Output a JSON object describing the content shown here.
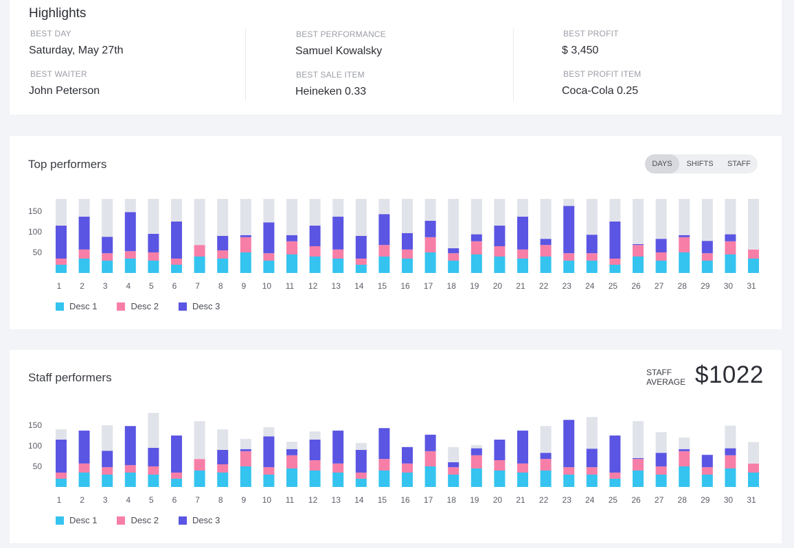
{
  "colors": {
    "desc1": "#35c3ef",
    "desc2": "#f77fa7",
    "desc3": "#5a55e2",
    "remainder": "#e1e3ea"
  },
  "highlights": {
    "title": "Highlights",
    "best_day_label": "BEST DAY",
    "best_day": "Saturday, May 27th",
    "best_waiter_label": "BEST WAITER",
    "best_waiter": "John Peterson",
    "best_performance_label": "BEST PERFORMANCE",
    "best_performance": "Samuel Kowalsky",
    "best_sale_item_label": "BEST SALE ITEM",
    "best_sale_item": "Heineken 0.33",
    "best_profit_label": "BEST PROFIT",
    "best_profit": "$ 3,450",
    "best_profit_item_label": "BEST PROFIT ITEM",
    "best_profit_item": "Coca-Cola 0.25"
  },
  "top_performers": {
    "title": "Top performers",
    "toggle": [
      "DAYS",
      "SHIFTS",
      "STAFF"
    ],
    "active": "DAYS"
  },
  "staff_performers": {
    "title": "Staff performers",
    "avg_label_1": "STAFF",
    "avg_label_2": "AVERAGE",
    "avg_value": "$1022"
  },
  "chart_data": [
    {
      "type": "bar",
      "stacked": true,
      "yticks": [
        50,
        100,
        150
      ],
      "ylim": [
        0,
        180
      ],
      "categories": [
        "1",
        "2",
        "3",
        "4",
        "5",
        "6",
        "7",
        "8",
        "9",
        "10",
        "11",
        "12",
        "13",
        "14",
        "15",
        "16",
        "17",
        "18",
        "19",
        "20",
        "21",
        "22",
        "23",
        "24",
        "25",
        "26",
        "27",
        "28",
        "29",
        "30",
        "31"
      ],
      "series": [
        {
          "name": "Desc 1",
          "values": [
            20,
            35,
            30,
            35,
            30,
            20,
            40,
            35,
            50,
            30,
            45,
            40,
            35,
            20,
            40,
            35,
            50,
            30,
            45,
            40,
            35,
            40,
            30,
            30,
            20,
            40,
            30,
            50,
            30,
            45,
            35
          ]
        },
        {
          "name": "Desc 2",
          "values": [
            15,
            22,
            18,
            18,
            20,
            15,
            28,
            20,
            37,
            18,
            32,
            25,
            22,
            15,
            28,
            22,
            37,
            18,
            32,
            25,
            22,
            28,
            18,
            18,
            15,
            28,
            20,
            37,
            18,
            32,
            22
          ]
        },
        {
          "name": "Desc 3",
          "values": [
            80,
            80,
            40,
            95,
            45,
            90,
            0,
            35,
            5,
            75,
            15,
            50,
            80,
            55,
            75,
            40,
            40,
            12,
            17,
            50,
            80,
            15,
            115,
            45,
            90,
            2,
            33,
            5,
            30,
            17,
            0
          ]
        },
        {
          "name": "",
          "values": [
            65,
            43,
            92,
            32,
            85,
            55,
            112,
            90,
            88,
            57,
            88,
            65,
            43,
            90,
            37,
            83,
            53,
            120,
            86,
            65,
            43,
            97,
            17,
            87,
            55,
            110,
            97,
            88,
            102,
            86,
            123
          ]
        }
      ],
      "legend": [
        "Desc 1",
        "Desc 2",
        "Desc 3"
      ]
    },
    {
      "type": "bar",
      "stacked": true,
      "yticks": [
        50,
        100,
        150
      ],
      "ylim": [
        0,
        180
      ],
      "categories": [
        "1",
        "2",
        "3",
        "4",
        "5",
        "6",
        "7",
        "8",
        "9",
        "10",
        "11",
        "12",
        "13",
        "14",
        "15",
        "16",
        "17",
        "18",
        "19",
        "20",
        "21",
        "22",
        "23",
        "24",
        "25",
        "26",
        "27",
        "28",
        "29",
        "30",
        "31"
      ],
      "series": [
        {
          "name": "Desc 1",
          "values": [
            20,
            35,
            30,
            35,
            30,
            20,
            40,
            35,
            50,
            30,
            45,
            40,
            35,
            20,
            40,
            35,
            50,
            30,
            45,
            40,
            35,
            40,
            30,
            30,
            20,
            40,
            30,
            50,
            30,
            45,
            35
          ]
        },
        {
          "name": "Desc 2",
          "values": [
            15,
            22,
            18,
            18,
            20,
            15,
            28,
            20,
            37,
            18,
            32,
            25,
            22,
            15,
            28,
            22,
            37,
            18,
            32,
            25,
            22,
            28,
            18,
            18,
            15,
            28,
            20,
            37,
            18,
            32,
            22
          ]
        },
        {
          "name": "Desc 3",
          "values": [
            80,
            80,
            40,
            95,
            45,
            90,
            0,
            35,
            5,
            75,
            15,
            50,
            80,
            55,
            75,
            40,
            40,
            12,
            17,
            50,
            80,
            15,
            115,
            45,
            90,
            2,
            33,
            5,
            30,
            17,
            0
          ]
        },
        {
          "name": "",
          "values": [
            25,
            0,
            62,
            0,
            85,
            0,
            92,
            50,
            25,
            22,
            18,
            20,
            0,
            17,
            0,
            0,
            0,
            37,
            8,
            0,
            0,
            65,
            0,
            77,
            0,
            90,
            50,
            28,
            0,
            55,
            52
          ]
        }
      ],
      "legend": [
        "Desc 1",
        "Desc 2",
        "Desc 3"
      ]
    }
  ]
}
